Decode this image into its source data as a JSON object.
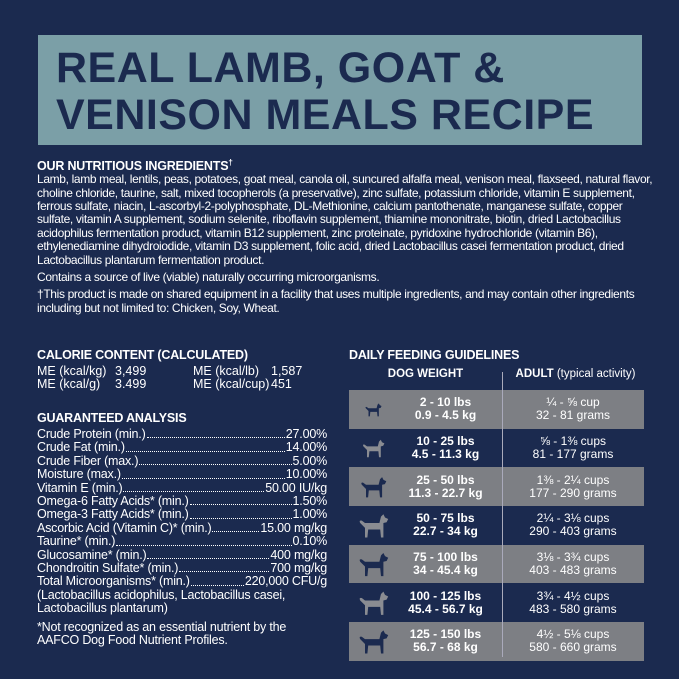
{
  "title": {
    "line1": "REAL LAMB, GOAT &",
    "line2": "VENISON MEALS RECIPE"
  },
  "ingredients": {
    "heading": "OUR NUTRITIOUS INGREDIENTS",
    "heading_mark": "†",
    "text": "Lamb, lamb meal, lentils, peas, potatoes, goat meal, canola oil, suncured alfalfa meal, venison meal, flaxseed, natural flavor, choline chloride, taurine, salt, mixed tocopherols (a preservative), zinc sulfate, potassium chloride, vitamin E supplement, ferrous sulfate, niacin, L-ascorbyl-2-polyphosphate, DL-Methionine, calcium pantothenate, manganese sulfate, copper sulfate, vitamin A supplement, sodium selenite, riboflavin supplement, thiamine mononitrate, biotin, dried Lactobacillus acidophilus fermentation product, vitamin B12 supplement, zinc proteinate, pyridoxine hydrochloride (vitamin B6), ethylenediamine dihydroiodide, vitamin D3 supplement, folic acid, dried Lactobacillus casei fermentation product, dried Lactobacillus plantarum fermentation product.",
    "live": "Contains a source of live (viable) naturally occurring microorganisms.",
    "disclaimer": "†This product is made on shared equipment in a facility that uses multiple ingredients, and may contain other ingredients including but not limited to: Chicken, Soy, Wheat."
  },
  "calorie": {
    "heading": "CALORIE CONTENT (CALCULATED)",
    "items": [
      {
        "label": "ME (kcal/kg)",
        "value": "3,499"
      },
      {
        "label": "ME (kcal/lb)",
        "value": "1,587"
      },
      {
        "label": "ME (kcal/g)",
        "value": "3.499"
      },
      {
        "label": "ME (kcal/cup)",
        "value": "451"
      }
    ]
  },
  "analysis": {
    "heading": "GUARANTEED ANALYSIS",
    "rows": [
      {
        "label": "Crude Protein (min.)",
        "value": "27.00%"
      },
      {
        "label": "Crude Fat (min.)",
        "value": "14.00%"
      },
      {
        "label": "Crude Fiber (max.)",
        "value": "5.00%"
      },
      {
        "label": "Moisture (max.)",
        "value": "10.00%"
      },
      {
        "label": "Vitamin E (min.)",
        "value": "50.00 IU/kg"
      },
      {
        "label": "Omega-6 Fatty Acids* (min.)",
        "value": "1.50%"
      },
      {
        "label": "Omega-3 Fatty Acids* (min.)",
        "value": "1.00%"
      },
      {
        "label": "Ascorbic Acid (Vitamin C)* (min.)",
        "value": "15.00 mg/kg"
      },
      {
        "label": "Taurine* (min.)",
        "value": "0.10%"
      },
      {
        "label": "Glucosamine* (min.)",
        "value": "400 mg/kg"
      },
      {
        "label": "Chondroitin Sulfate* (min.)",
        "value": "700 mg/kg"
      },
      {
        "label": "Total Microorganisms* (min.)",
        "value": "220,000 CFU/g"
      }
    ],
    "strains": "(Lactobacillus acidophilus, Lactobacillus casei, Lactobacillus plantarum)",
    "footnote": "*Not recognized as an essential nutrient by the AAFCO Dog Food Nutrient Profiles."
  },
  "feeding": {
    "heading": "DAILY FEEDING GUIDELINES",
    "col1": "DOG WEIGHT",
    "col2_bold": "ADULT",
    "col2_rest": " (typical activity)",
    "rows": [
      {
        "lbs": "2 - 10 lbs",
        "kg": "0.9 - 4.5 kg",
        "cups": "¼ - ⅝ cup",
        "grams": "32 - 81 grams",
        "icon": "tiny-dog-icon"
      },
      {
        "lbs": "10 - 25 lbs",
        "kg": "4.5 - 11.3 kg",
        "cups": "⅝ - 1⅜ cups",
        "grams": "81 - 177 grams",
        "icon": "small-dog-icon"
      },
      {
        "lbs": "25 - 50 lbs",
        "kg": "11.3 - 22.7 kg",
        "cups": "1⅜ - 2¼ cups",
        "grams": "177 - 290 grams",
        "icon": "medium-dog-icon"
      },
      {
        "lbs": "50 - 75 lbs",
        "kg": "22.7 - 34 kg",
        "cups": "2¼ - 3⅛ cups",
        "grams": "290 - 403 grams",
        "icon": "large-dog-icon"
      },
      {
        "lbs": "75 - 100 lbs",
        "kg": "34 - 45.4 kg",
        "cups": "3⅛ - 3¾ cups",
        "grams": "403 - 483 grams",
        "icon": "great-dane-icon"
      },
      {
        "lbs": "100 - 125 lbs",
        "kg": "45.4 - 56.7 kg",
        "cups": "3¾ - 4½ cups",
        "grams": "483 - 580 grams",
        "icon": "xl-dog-icon"
      },
      {
        "lbs": "125 - 150 lbs",
        "kg": "56.7 - 68 kg",
        "cups": "4½ - 5⅛ cups",
        "grams": "580 - 660 grams",
        "icon": "giant-dog-icon"
      }
    ]
  },
  "colors": {
    "background": "#1b2a4f",
    "title_box": "#7b9fa7",
    "row_gray": "#7d7f84",
    "row_navy": "#1b2a4f"
  }
}
